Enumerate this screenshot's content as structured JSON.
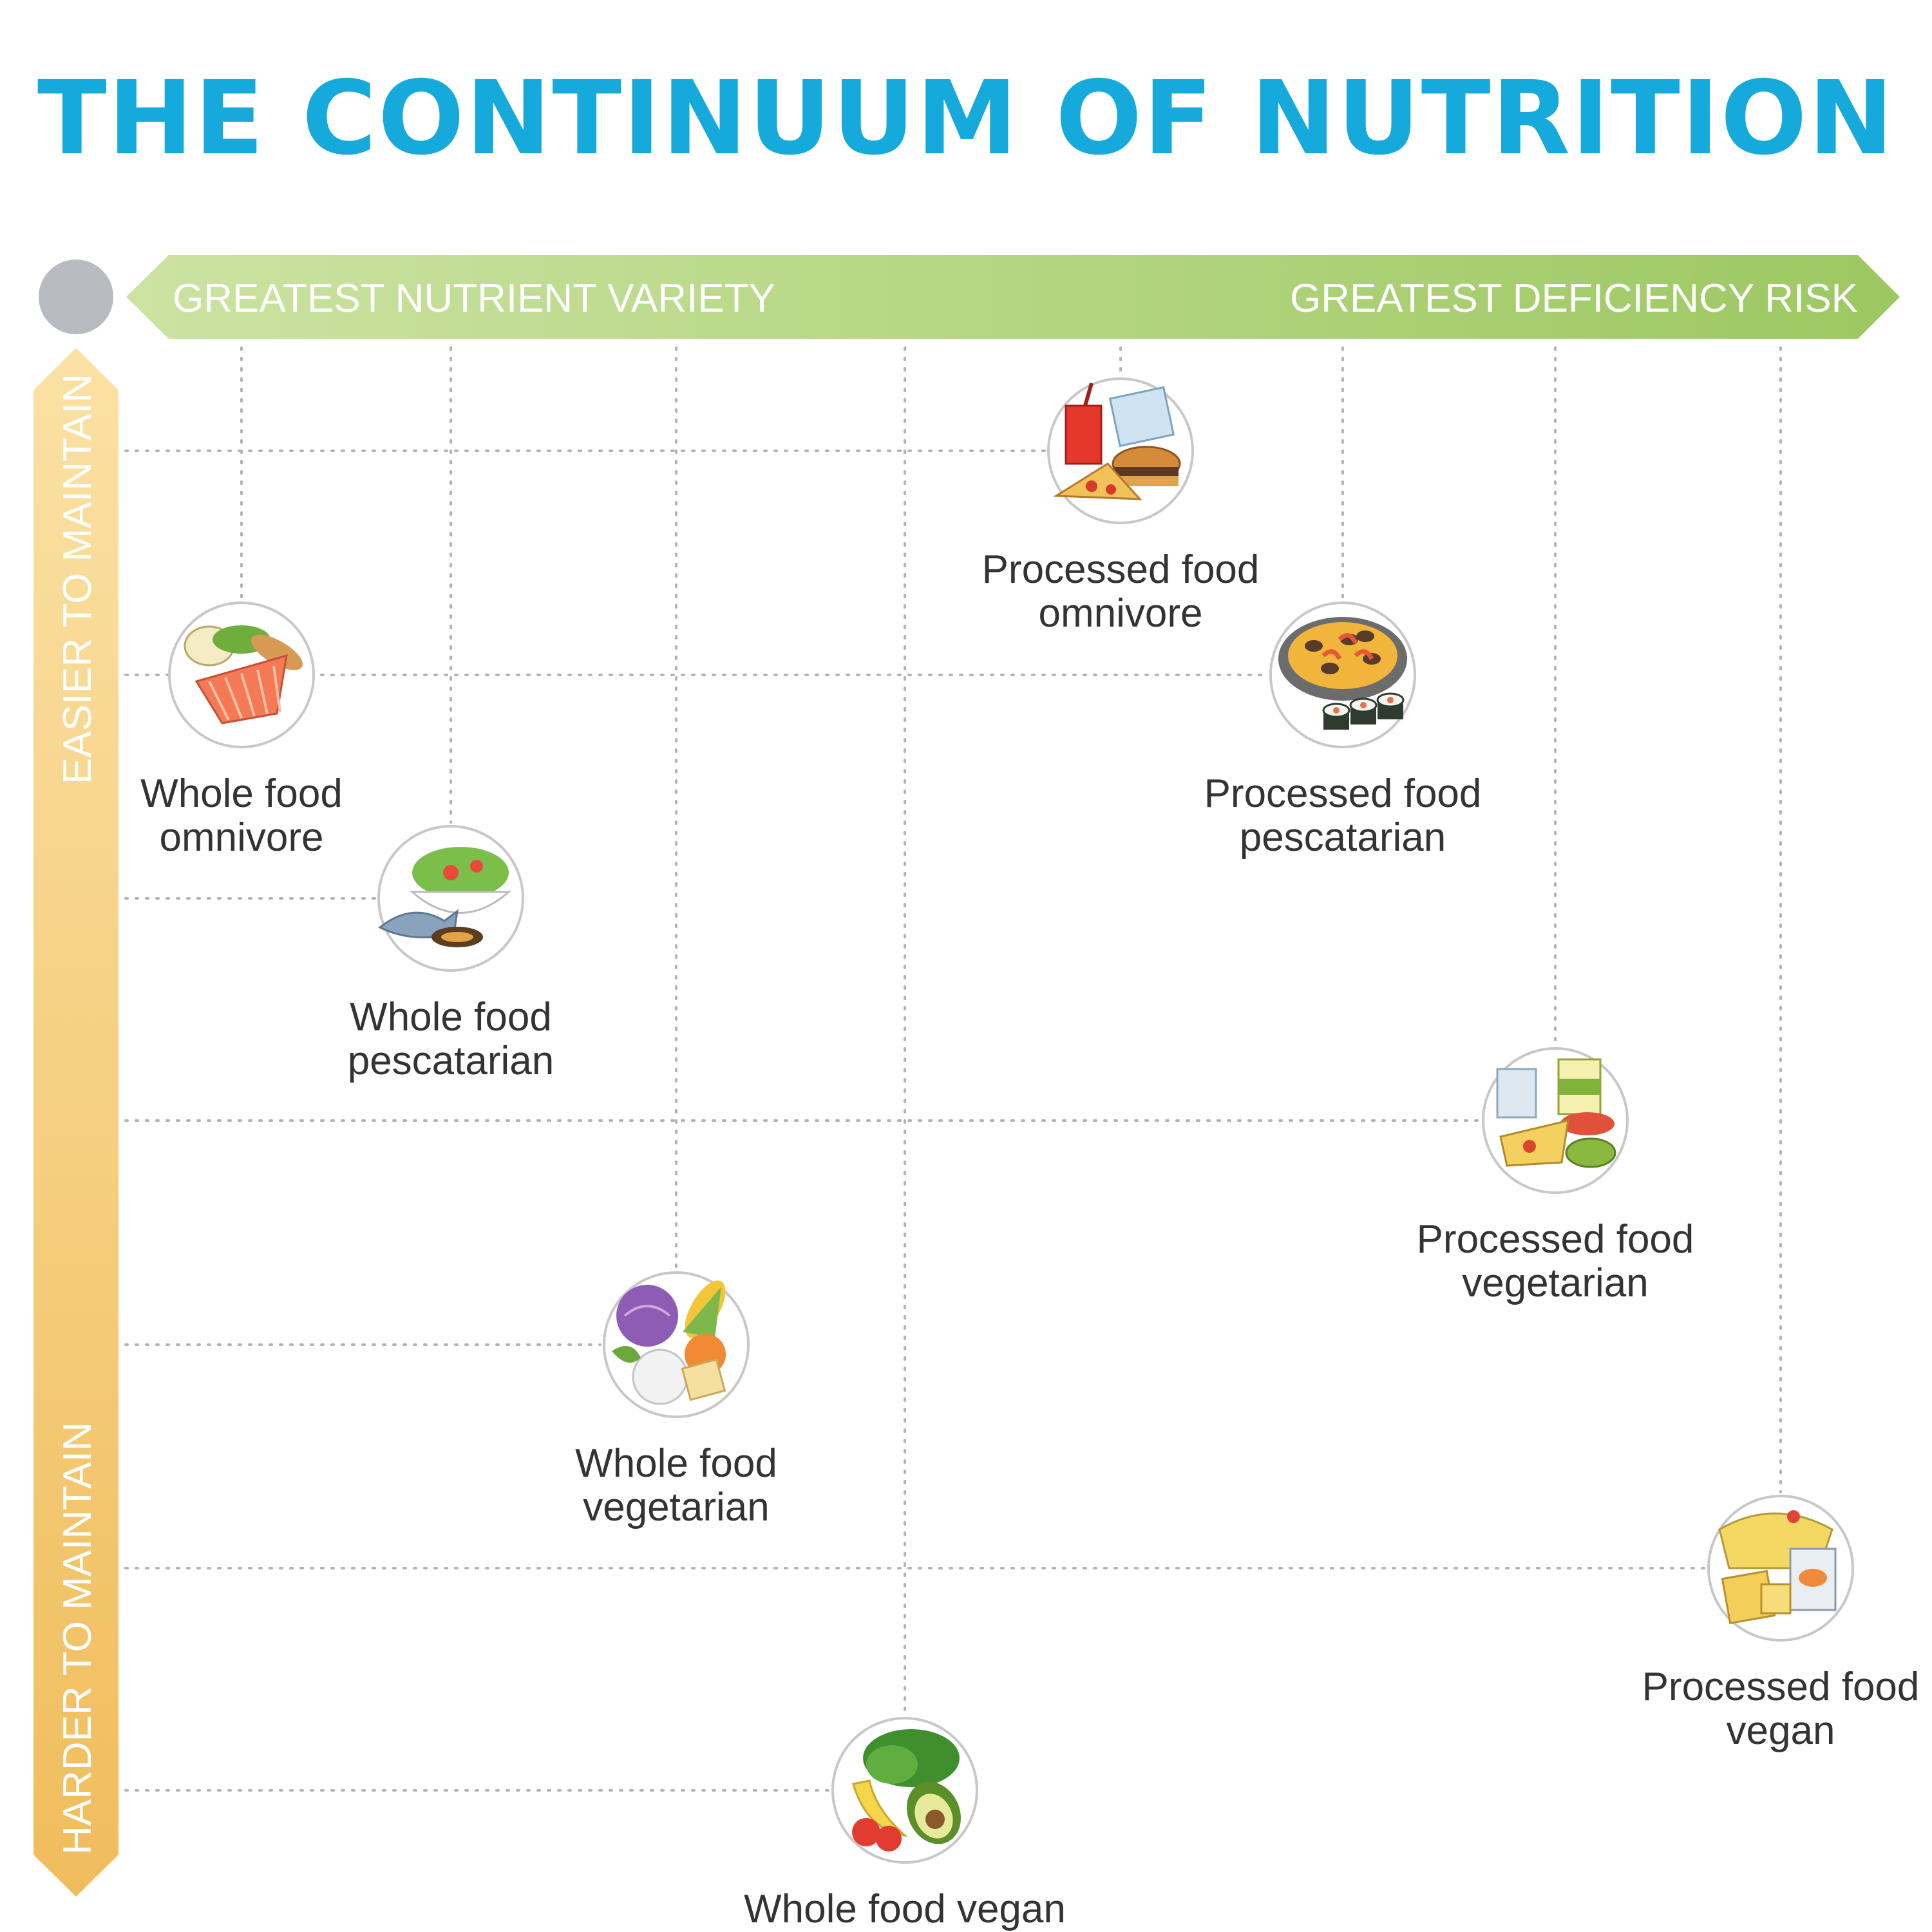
{
  "title": "THE CONTINUUM OF NUTRITION",
  "colors": {
    "title": "#15a9dc",
    "top_arrow_light": "#cce3a2",
    "top_arrow_dark": "#9cc861",
    "side_arrow_light": "#fbe1a4",
    "side_arrow_dark": "#f0bd5c",
    "corner_dot": "#b8bcc0",
    "grid": "#b3b3b3",
    "label_text": "#333333"
  },
  "horizontal_axis": {
    "left_label": "GREATEST NUTRIENT VARIETY",
    "right_label": "GREATEST DEFICIENCY RISK"
  },
  "vertical_axis": {
    "top_label": "EASIER TO MAINTAIN",
    "bottom_label": "HARDER TO MAINTAIN"
  },
  "diets": [
    {
      "label_lines": [
        "Whole food",
        "omnivore"
      ],
      "icon": "salmon-salad-icon",
      "rank": 1
    },
    {
      "label_lines": [
        "Whole food",
        "pescatarian"
      ],
      "icon": "fish-salad-icon",
      "rank": 2
    },
    {
      "label_lines": [
        "Whole food",
        "vegetarian"
      ],
      "icon": "vegetables-icon",
      "rank": 3
    },
    {
      "label_lines": [
        "Whole food vegan"
      ],
      "icon": "fruit-vegetable-icon",
      "rank": 4
    },
    {
      "label_lines": [
        "Processed food",
        "omnivore"
      ],
      "icon": "fast-food-icon",
      "rank": 5
    },
    {
      "label_lines": [
        "Processed food",
        "pescatarian"
      ],
      "icon": "paella-sushi-icon",
      "rank": 6
    },
    {
      "label_lines": [
        "Processed food",
        "vegetarian"
      ],
      "icon": "prepared-meal-icon",
      "rank": 7
    },
    {
      "label_lines": [
        "Processed food",
        "vegan"
      ],
      "icon": "packaged-vegan-icon",
      "rank": 8
    }
  ]
}
